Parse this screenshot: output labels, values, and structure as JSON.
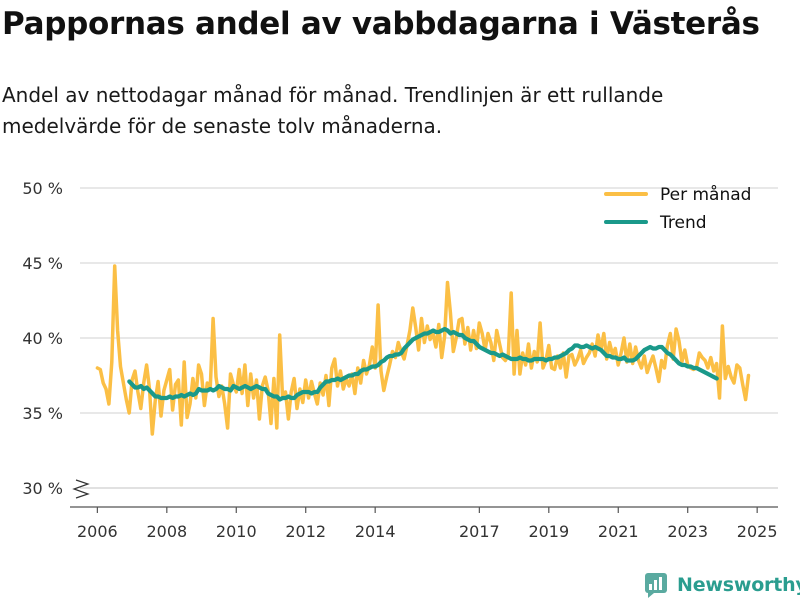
{
  "header": {
    "title": "Pappornas andel av vabbdagarna i Västerås",
    "subtitle": "Andel av nettodagar månad för månad. Trendlinjen är ett rullande medelvärde för de senaste tolv månaderna."
  },
  "brand": {
    "name": "Newsworthy"
  },
  "colors": {
    "monthly": "#fbbf45",
    "trend": "#1a998a",
    "grid": "#d9d9d9",
    "brand": "#2a9d8f"
  },
  "chart_data": {
    "type": "line",
    "title": "Pappornas andel av vabbdagarna i Västerås",
    "xlabel": "",
    "ylabel": "",
    "ylim": [
      30,
      50
    ],
    "xlim": [
      2005.5,
      2025.6
    ],
    "y_ticks": [
      {
        "value": 30,
        "label": "30 %"
      },
      {
        "value": 35,
        "label": "35 %"
      },
      {
        "value": 40,
        "label": "40 %"
      },
      {
        "value": 45,
        "label": "45 %"
      },
      {
        "value": 50,
        "label": "50 %"
      }
    ],
    "x_ticks": [
      {
        "value": 2006,
        "label": "2006"
      },
      {
        "value": 2008,
        "label": "2008"
      },
      {
        "value": 2010,
        "label": "2010"
      },
      {
        "value": 2012,
        "label": "2012"
      },
      {
        "value": 2014,
        "label": "2014"
      },
      {
        "value": 2017,
        "label": "2017"
      },
      {
        "value": 2019,
        "label": "2019"
      },
      {
        "value": 2021,
        "label": "2021"
      },
      {
        "value": 2023,
        "label": "2023"
      },
      {
        "value": 2025,
        "label": "2025"
      }
    ],
    "legend": {
      "position": "top-right"
    },
    "series": [
      {
        "name": "Per månad",
        "color": "#fbbf45",
        "start_year": 2006.0,
        "step_years": 0.08333,
        "values": [
          38.0,
          37.9,
          37.0,
          36.6,
          35.6,
          38.4,
          44.8,
          40.5,
          38.1,
          37.0,
          35.9,
          35.0,
          37.2,
          37.8,
          36.4,
          35.3,
          37.0,
          38.2,
          36.6,
          33.6,
          35.8,
          37.1,
          34.8,
          36.5,
          37.2,
          37.9,
          35.2,
          36.9,
          37.2,
          34.2,
          38.4,
          34.7,
          35.6,
          37.3,
          36.0,
          38.2,
          37.6,
          35.5,
          37.0,
          36.6,
          41.3,
          37.4,
          36.1,
          36.8,
          35.6,
          34.0,
          37.6,
          36.9,
          36.4,
          37.9,
          36.3,
          38.2,
          35.5,
          37.6,
          36.0,
          37.2,
          34.6,
          36.8,
          37.4,
          36.5,
          34.3,
          37.3,
          34.0,
          40.2,
          36.0,
          36.4,
          34.6,
          36.4,
          37.3,
          35.3,
          36.6,
          35.7,
          37.2,
          36.0,
          37.1,
          36.3,
          35.6,
          37.0,
          36.2,
          37.5,
          35.5,
          38.0,
          38.6,
          36.8,
          37.8,
          36.6,
          37.3,
          36.8,
          37.6,
          36.3,
          38.0,
          37.0,
          38.5,
          37.6,
          38.2,
          39.4,
          38.0,
          42.2,
          37.8,
          36.5,
          37.4,
          38.2,
          39.1,
          38.7,
          39.7,
          39.1,
          38.6,
          39.5,
          40.5,
          42.0,
          40.7,
          39.2,
          41.3,
          39.7,
          40.8,
          39.9,
          40.3,
          39.4,
          40.9,
          38.7,
          40.1,
          43.7,
          41.7,
          39.1,
          40.0,
          41.2,
          41.3,
          39.6,
          40.7,
          39.2,
          40.5,
          39.3,
          41.0,
          40.3,
          39.2,
          40.3,
          39.7,
          38.5,
          40.5,
          39.6,
          38.7,
          38.5,
          38.9,
          43.0,
          37.6,
          40.5,
          37.6,
          39.0,
          38.2,
          39.6,
          38.0,
          39.1,
          38.4,
          41.0,
          38.0,
          38.5,
          39.5,
          38.0,
          37.9,
          38.8,
          38.0,
          39.0,
          37.4,
          38.8,
          38.9,
          38.2,
          38.6,
          39.2,
          38.3,
          38.7,
          39.0,
          39.6,
          38.8,
          40.2,
          39.2,
          40.3,
          38.6,
          39.7,
          38.9,
          39.3,
          38.2,
          39.0,
          40.0,
          38.4,
          39.6,
          38.3,
          39.4,
          38.5,
          38.0,
          38.8,
          37.7,
          38.3,
          38.8,
          38.0,
          37.1,
          38.5,
          38.0,
          39.5,
          40.3,
          38.6,
          40.6,
          39.8,
          38.4,
          39.2,
          38.2,
          38.0,
          37.9,
          38.0,
          39.0,
          38.7,
          38.5,
          38.0,
          38.7,
          37.8,
          38.3,
          36.0,
          40.8,
          37.3,
          38.1,
          37.4,
          37.0,
          38.2,
          38.0,
          36.9,
          35.9,
          37.5
        ]
      },
      {
        "name": "Trend",
        "color": "#1a998a",
        "start_year": 2006.92,
        "step_years": 0.08333,
        "values": [
          37.1,
          36.9,
          36.7,
          36.7,
          36.8,
          36.6,
          36.7,
          36.5,
          36.3,
          36.1,
          36.1,
          36.0,
          36.0,
          36.0,
          36.1,
          36.0,
          36.1,
          36.1,
          36.2,
          36.1,
          36.2,
          36.3,
          36.2,
          36.3,
          36.6,
          36.5,
          36.5,
          36.5,
          36.6,
          36.5,
          36.6,
          36.8,
          36.7,
          36.6,
          36.6,
          36.5,
          36.8,
          36.7,
          36.6,
          36.7,
          36.8,
          36.7,
          36.6,
          36.7,
          36.8,
          36.7,
          36.6,
          36.6,
          36.3,
          36.2,
          36.1,
          36.1,
          35.9,
          36.0,
          36.0,
          36.1,
          36.0,
          36.0,
          36.2,
          36.3,
          36.4,
          36.4,
          36.4,
          36.3,
          36.4,
          36.4,
          36.7,
          36.9,
          37.1,
          37.1,
          37.2,
          37.2,
          37.3,
          37.2,
          37.3,
          37.4,
          37.5,
          37.5,
          37.6,
          37.6,
          37.8,
          37.9,
          37.9,
          38.0,
          38.1,
          38.1,
          38.2,
          38.4,
          38.5,
          38.7,
          38.8,
          38.8,
          38.9,
          38.9,
          39.0,
          39.3,
          39.5,
          39.7,
          39.9,
          40.0,
          40.1,
          40.2,
          40.3,
          40.3,
          40.4,
          40.5,
          40.4,
          40.4,
          40.5,
          40.6,
          40.5,
          40.3,
          40.4,
          40.3,
          40.2,
          40.2,
          40.0,
          39.9,
          39.8,
          39.8,
          39.6,
          39.4,
          39.3,
          39.2,
          39.1,
          39.0,
          39.0,
          38.9,
          38.8,
          38.9,
          38.8,
          38.7,
          38.6,
          38.6,
          38.6,
          38.7,
          38.6,
          38.6,
          38.5,
          38.5,
          38.6,
          38.6,
          38.6,
          38.6,
          38.5,
          38.6,
          38.6,
          38.7,
          38.7,
          38.8,
          38.9,
          39.0,
          39.2,
          39.3,
          39.5,
          39.5,
          39.4,
          39.4,
          39.5,
          39.4,
          39.3,
          39.4,
          39.3,
          39.2,
          39.0,
          38.8,
          38.8,
          38.7,
          38.7,
          38.6,
          38.6,
          38.7,
          38.5,
          38.5,
          38.5,
          38.6,
          38.8,
          39.0,
          39.2,
          39.3,
          39.4,
          39.3,
          39.3,
          39.4,
          39.4,
          39.2,
          39.0,
          38.9,
          38.7,
          38.5,
          38.3,
          38.2,
          38.2,
          38.1,
          38.1,
          38.0,
          38.0,
          37.9,
          37.8,
          37.7,
          37.6,
          37.5,
          37.4,
          37.3
        ]
      }
    ]
  }
}
